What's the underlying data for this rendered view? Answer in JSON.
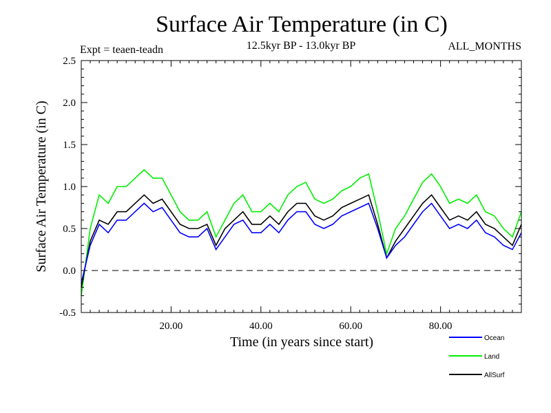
{
  "chart_data": {
    "type": "line",
    "title": "Surface Air Temperature (in C)",
    "experiment_label": "Expt = teaen-teadn",
    "period_label": "12.5kyr BP - 13.0kyr BP",
    "months_label": "ALL_MONTHS",
    "xlabel": "Time (in years since start)",
    "ylabel": "Surface Air Temperature (in C)",
    "xlim": [
      0,
      98
    ],
    "ylim": [
      -0.5,
      2.5
    ],
    "x_ticks": [
      20,
      40,
      60,
      80
    ],
    "x_tick_labels": [
      "20.00",
      "40.00",
      "60.00",
      "80.00"
    ],
    "y_ticks": [
      -0.5,
      0.0,
      0.5,
      1.0,
      1.5,
      2.0,
      2.5
    ],
    "y_tick_labels": [
      "-0.5",
      "0.0",
      "0.5",
      "1.0",
      "1.5",
      "2.0",
      "2.5"
    ],
    "reference_line": 0.0,
    "series": [
      {
        "name": "Ocean",
        "color": "#0000ff",
        "x": [
          0,
          2,
          4,
          6,
          8,
          10,
          12,
          14,
          16,
          18,
          20,
          22,
          24,
          26,
          28,
          30,
          32,
          34,
          36,
          38,
          40,
          42,
          44,
          46,
          48,
          50,
          52,
          54,
          56,
          58,
          60,
          62,
          64,
          66,
          68,
          70,
          72,
          74,
          76,
          78,
          80,
          82,
          84,
          86,
          88,
          90,
          92,
          94,
          96,
          98
        ],
        "values": [
          -0.15,
          0.3,
          0.55,
          0.45,
          0.6,
          0.6,
          0.7,
          0.8,
          0.7,
          0.75,
          0.6,
          0.45,
          0.4,
          0.4,
          0.5,
          0.25,
          0.4,
          0.55,
          0.6,
          0.45,
          0.45,
          0.55,
          0.45,
          0.6,
          0.7,
          0.7,
          0.55,
          0.5,
          0.55,
          0.65,
          0.7,
          0.75,
          0.8,
          0.5,
          0.15,
          0.3,
          0.4,
          0.55,
          0.7,
          0.8,
          0.65,
          0.5,
          0.55,
          0.5,
          0.6,
          0.45,
          0.4,
          0.3,
          0.25,
          0.45
        ]
      },
      {
        "name": "Land",
        "color": "#00ee00",
        "x": [
          0,
          2,
          4,
          6,
          8,
          10,
          12,
          14,
          16,
          18,
          20,
          22,
          24,
          26,
          28,
          30,
          32,
          34,
          36,
          38,
          40,
          42,
          44,
          46,
          48,
          50,
          52,
          54,
          56,
          58,
          60,
          62,
          64,
          66,
          68,
          70,
          72,
          74,
          76,
          78,
          80,
          82,
          84,
          86,
          88,
          90,
          92,
          94,
          96,
          98
        ],
        "values": [
          -0.3,
          0.5,
          0.9,
          0.8,
          1.0,
          1.0,
          1.1,
          1.2,
          1.1,
          1.1,
          0.9,
          0.7,
          0.6,
          0.6,
          0.7,
          0.4,
          0.6,
          0.8,
          0.9,
          0.7,
          0.7,
          0.8,
          0.7,
          0.9,
          1.0,
          1.05,
          0.85,
          0.8,
          0.85,
          0.95,
          1.0,
          1.1,
          1.15,
          0.7,
          0.2,
          0.5,
          0.65,
          0.85,
          1.05,
          1.15,
          1.0,
          0.8,
          0.85,
          0.8,
          0.9,
          0.7,
          0.65,
          0.5,
          0.4,
          0.7
        ]
      },
      {
        "name": "AllSurf",
        "color": "#000000",
        "x": [
          0,
          2,
          4,
          6,
          8,
          10,
          12,
          14,
          16,
          18,
          20,
          22,
          24,
          26,
          28,
          30,
          32,
          34,
          36,
          38,
          40,
          42,
          44,
          46,
          48,
          50,
          52,
          54,
          56,
          58,
          60,
          62,
          64,
          66,
          68,
          70,
          72,
          74,
          76,
          78,
          80,
          82,
          84,
          86,
          88,
          90,
          92,
          94,
          96,
          98
        ],
        "values": [
          -0.2,
          0.35,
          0.6,
          0.55,
          0.7,
          0.7,
          0.8,
          0.9,
          0.8,
          0.85,
          0.7,
          0.55,
          0.5,
          0.5,
          0.55,
          0.3,
          0.5,
          0.6,
          0.7,
          0.55,
          0.55,
          0.65,
          0.55,
          0.7,
          0.8,
          0.8,
          0.65,
          0.6,
          0.65,
          0.75,
          0.8,
          0.85,
          0.9,
          0.55,
          0.15,
          0.35,
          0.5,
          0.65,
          0.8,
          0.9,
          0.75,
          0.6,
          0.65,
          0.6,
          0.7,
          0.55,
          0.5,
          0.4,
          0.3,
          0.55
        ]
      }
    ],
    "legend": {
      "placement": "bottom-right",
      "entries": [
        "Ocean",
        "Land",
        "AllSurf"
      ]
    },
    "grid": false
  }
}
